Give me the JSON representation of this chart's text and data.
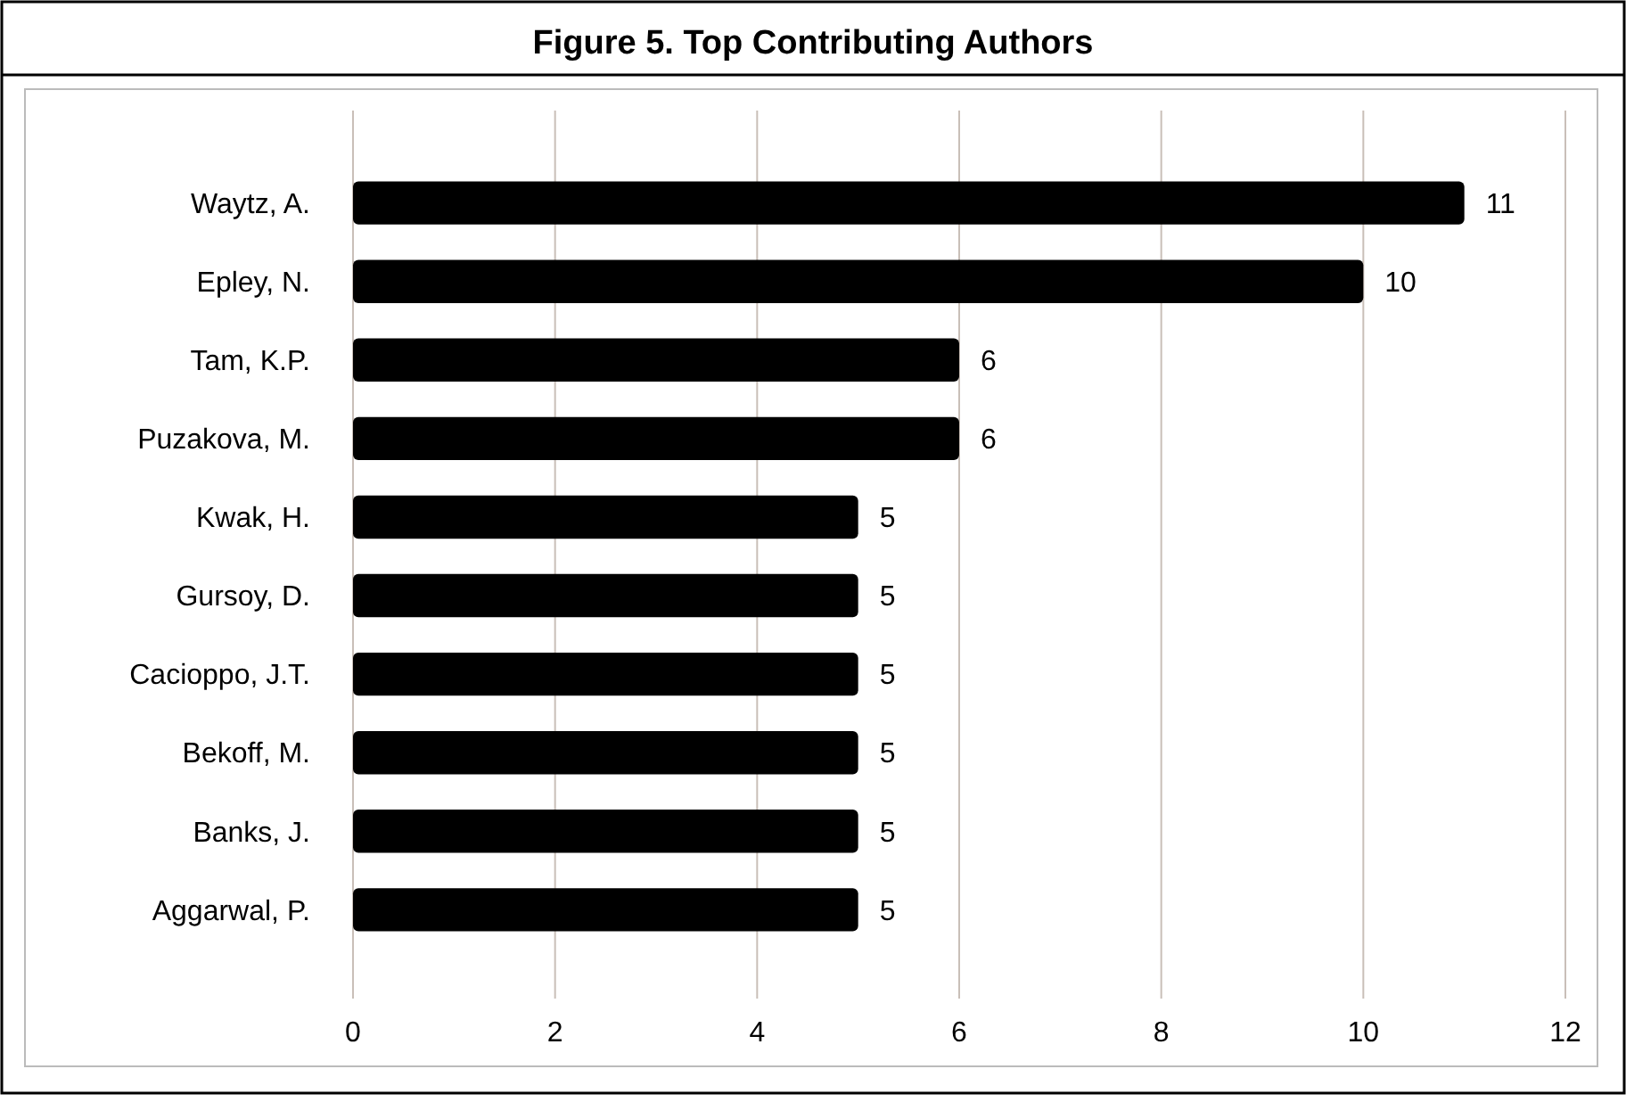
{
  "chart_data": {
    "type": "bar",
    "title": "Figure 5. Top Contributing Authors",
    "orientation": "horizontal",
    "categories": [
      "Waytz, A.",
      "Epley, N.",
      "Tam, K.P.",
      "Puzakova, M.",
      "Kwak, H.",
      "Gursoy, D.",
      "Cacioppo, J.T.",
      "Bekoff, M.",
      "Banks, J.",
      "Aggarwal, P."
    ],
    "values": [
      11,
      10,
      6,
      6,
      5,
      5,
      5,
      5,
      5,
      5
    ],
    "color": "#000000",
    "xlim": [
      0,
      12
    ],
    "xticks": [
      0,
      2,
      4,
      6,
      8,
      10,
      12
    ],
    "grid": "x",
    "data_labels": true
  }
}
